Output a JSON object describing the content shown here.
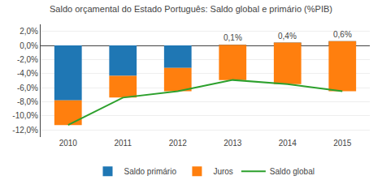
{
  "chart_data": {
    "type": "bar",
    "title": "Saldo orçamental do Estado Português: Saldo global e primário (%PIB)",
    "categories": [
      "2010",
      "2011",
      "2012",
      "2013",
      "2014",
      "2015"
    ],
    "series": [
      {
        "name": "Saldo primário",
        "type": "bar",
        "values": [
          -7.8,
          -4.3,
          -3.2,
          0.1,
          0.4,
          0.6
        ]
      },
      {
        "name": "Juros",
        "type": "bar",
        "values": [
          -3.5,
          -3.1,
          -3.3,
          -5.0,
          -5.9,
          -7.1
        ]
      },
      {
        "name": "Saldo global",
        "type": "line",
        "values": [
          -11.3,
          -7.4,
          -6.5,
          -4.9,
          -5.5,
          -6.5
        ]
      }
    ],
    "stacked": true,
    "ylim": [
      -13,
      3
    ],
    "yticks": [
      {
        "value": 2,
        "label": "2,0%"
      },
      {
        "value": 0,
        "label": "0,0%"
      },
      {
        "value": -2,
        "label": "-2,0%"
      },
      {
        "value": -4,
        "label": "-4,0%"
      },
      {
        "value": -6,
        "label": "-6,0%"
      },
      {
        "value": -8,
        "label": "-8,0%"
      },
      {
        "value": -10,
        "label": "-10,0%"
      },
      {
        "value": -12,
        "label": "-12,0%"
      }
    ],
    "grid": true,
    "legend": "bottom",
    "annotations": [
      {
        "category": "2013",
        "value": 0.1,
        "text": "0,1%"
      },
      {
        "category": "2014",
        "value": 0.4,
        "text": "0,4%"
      },
      {
        "category": "2015",
        "value": 0.6,
        "text": "0,6%"
      }
    ]
  }
}
